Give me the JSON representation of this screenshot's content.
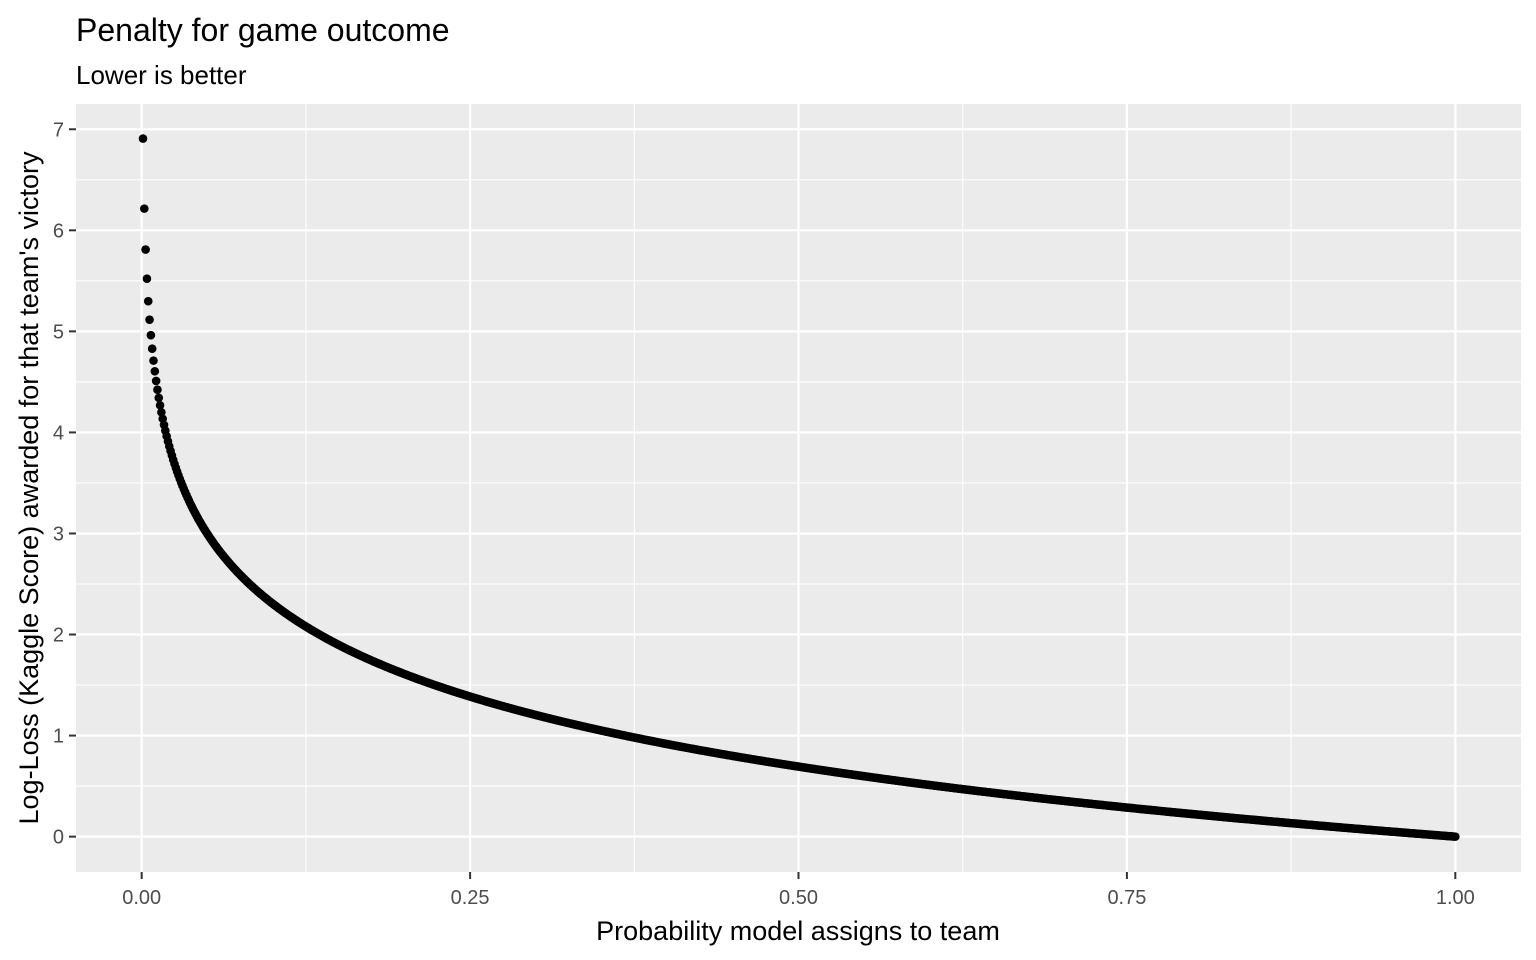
{
  "chart_data": {
    "type": "scatter",
    "title": "Penalty for game outcome",
    "subtitle": "Lower is better",
    "xlabel": "Probability model assigns to team",
    "ylabel": "Log-Loss (Kaggle Score) awarded for that team's victory",
    "xlim": [
      -0.05,
      1.05
    ],
    "ylim": [
      -0.35,
      7.25
    ],
    "x_ticks": [
      0,
      0.25,
      0.5,
      0.75,
      1
    ],
    "x_tick_labels": [
      "0.00",
      "0.25",
      "0.50",
      "0.75",
      "1.00"
    ],
    "y_ticks": [
      0,
      1,
      2,
      3,
      4,
      5,
      6,
      7
    ],
    "y_tick_labels": [
      "0",
      "1",
      "2",
      "3",
      "4",
      "5",
      "6",
      "7"
    ],
    "x_minor_ticks": [
      0.125,
      0.375,
      0.625,
      0.875
    ],
    "y_minor_ticks": [
      0.5,
      1.5,
      2.5,
      3.5,
      4.5,
      5.5,
      6.5
    ],
    "grid": true,
    "series": [
      {
        "x_start": 0.001,
        "x_end": 1.0,
        "x_step": 0.001,
        "y_formula": "-ln(x)",
        "color": "#000000"
      }
    ],
    "panel_background": "#ebebeb",
    "grid_color": "#ffffff"
  }
}
